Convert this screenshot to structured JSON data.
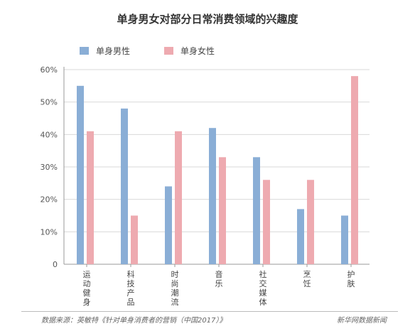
{
  "colors": {
    "male": "#8aaed6",
    "female": "#eeaab0"
  },
  "chart_data": {
    "type": "bar",
    "title": "单身男女对部分日常消费领域的兴趣度",
    "categories": [
      "运动健身",
      "科技产品",
      "时尚潮流",
      "音乐",
      "社交媒体",
      "烹饪",
      "护肤"
    ],
    "series": [
      {
        "name": "单身男性",
        "values": [
          55,
          48,
          24,
          42,
          33,
          17,
          15
        ]
      },
      {
        "name": "单身女性",
        "values": [
          41,
          15,
          41,
          33,
          26,
          26,
          58
        ]
      }
    ],
    "yticks": [
      "0",
      "10%",
      "20%",
      "30%",
      "40%",
      "50%",
      "60%"
    ],
    "ylim": [
      0,
      60
    ],
    "grid": true,
    "legend_position": "top-left"
  },
  "footer": {
    "source": "数据来源：英敏特《针对单身消费者的营销（中国2017）》",
    "credit": "新华网数据新闻"
  }
}
